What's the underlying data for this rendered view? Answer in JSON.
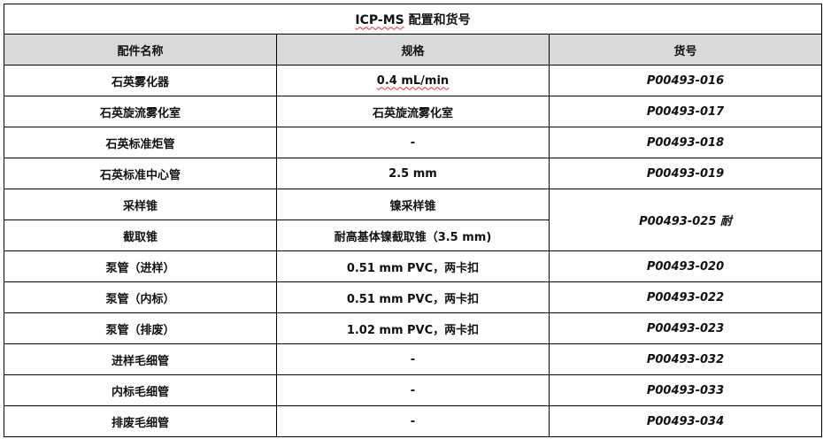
{
  "title": {
    "prefix": "ICP-MS",
    "rest": " 配置和货号"
  },
  "headers": [
    "配件名称",
    "规格",
    "货号"
  ],
  "rows": [
    {
      "name": "石英雾化器",
      "spec": "0.4 mL/min",
      "code": "P00493-016"
    },
    {
      "name": "石英旋流雾化室",
      "spec": "石英旋流雾化室",
      "code": "P00493-017"
    },
    {
      "name": "石英标准炬管",
      "spec": "-",
      "code": "P00493-018"
    },
    {
      "name": "石英标准中心管",
      "spec": "2.5 mm",
      "code": "P00493-019"
    },
    {
      "name": "采样锥",
      "spec": "镍采样锥",
      "code": "P00493-025 耐"
    },
    {
      "name": "截取锥",
      "spec": "耐高基体镍截取锥（3.5 mm)"
    },
    {
      "name": "泵管（进样）",
      "spec": "0.51 mm PVC，两卡扣",
      "code": "P00493-020"
    },
    {
      "name": "泵管（内标）",
      "spec": "0.51 mm PVC，两卡扣",
      "code": "P00493-022"
    },
    {
      "name": "泵管（排废）",
      "spec": "1.02 mm PVC，两卡扣",
      "code": "P00493-023"
    },
    {
      "name": "进样毛细管",
      "spec": "-",
      "code": "P00493-032"
    },
    {
      "name": "内标毛细管",
      "spec": "-",
      "code": "P00493-033"
    },
    {
      "name": "排废毛细管",
      "spec": "-",
      "code": "P00493-034"
    }
  ]
}
